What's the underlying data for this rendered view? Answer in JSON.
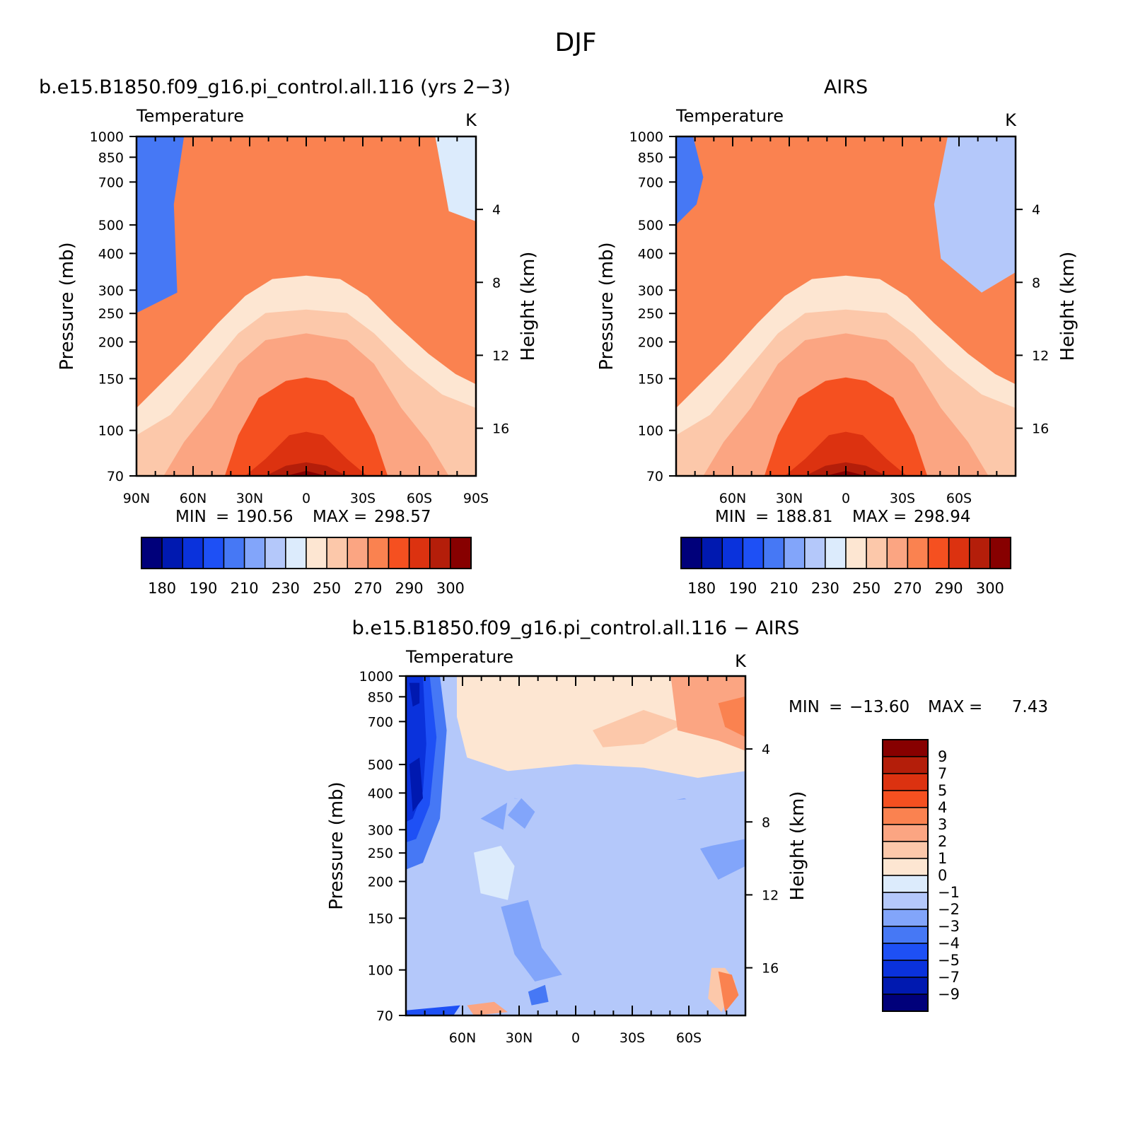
{
  "figure": {
    "season": "DJF"
  },
  "chart_data": [
    {
      "type": "heatmap",
      "panel": "model",
      "title": "b.e15.B1850.f09_g16.pi_control.all.116 (yrs 2−3)",
      "variable": "Temperature",
      "units": "K",
      "ylabel": "Pressure (mb)",
      "y2label": "Height (km)",
      "x_ticks": [
        "90N",
        "60N",
        "30N",
        "0",
        "30S",
        "60S",
        "90S"
      ],
      "x_range": [
        90,
        -90
      ],
      "y_ticks": [
        70,
        100,
        150,
        200,
        250,
        300,
        400,
        500,
        700,
        850,
        1000
      ],
      "y_range": [
        1000,
        70
      ],
      "y_scale": "log",
      "y2_ticks": [
        4,
        8,
        12,
        16
      ],
      "stats": {
        "min_label": "MIN",
        "min": "190.56",
        "max_label": "MAX",
        "max": "298.57"
      },
      "colorbar": {
        "levels": [
          180,
          185,
          190,
          200,
          210,
          220,
          230,
          240,
          250,
          260,
          270,
          280,
          290,
          295,
          300
        ],
        "labels": [
          "180",
          "190",
          "210",
          "230",
          "250",
          "270",
          "290",
          "300"
        ]
      }
    },
    {
      "type": "heatmap",
      "panel": "obs",
      "title": "AIRS",
      "variable": "Temperature",
      "units": "K",
      "ylabel": "Pressure (mb)",
      "y2label": "Height (km)",
      "x_ticks": [
        "60N",
        "30N",
        "0",
        "30S",
        "60S"
      ],
      "x_range": [
        90,
        -90
      ],
      "y_ticks": [
        70,
        100,
        150,
        200,
        250,
        300,
        400,
        500,
        700,
        850,
        1000
      ],
      "y_range": [
        1000,
        70
      ],
      "y_scale": "log",
      "y2_ticks": [
        4,
        8,
        12,
        16
      ],
      "stats": {
        "min_label": "MIN",
        "min": "188.81",
        "max_label": "MAX",
        "max": "298.94"
      },
      "colorbar": {
        "levels": [
          180,
          185,
          190,
          200,
          210,
          220,
          230,
          240,
          250,
          260,
          270,
          280,
          290,
          295,
          300
        ],
        "labels": [
          "180",
          "190",
          "210",
          "230",
          "250",
          "270",
          "290",
          "300"
        ]
      }
    },
    {
      "type": "heatmap",
      "panel": "diff",
      "title": "b.e15.B1850.f09_g16.pi_control.all.116 − AIRS",
      "variable": "Temperature",
      "units": "K",
      "ylabel": "Pressure (mb)",
      "y2label": "Height (km)",
      "x_ticks": [
        "60N",
        "30N",
        "0",
        "30S",
        "60S"
      ],
      "x_range": [
        90,
        -90
      ],
      "y_ticks": [
        70,
        100,
        150,
        200,
        250,
        300,
        400,
        500,
        700,
        850,
        1000
      ],
      "y_range": [
        1000,
        70
      ],
      "y_scale": "log",
      "y2_ticks": [
        4,
        8,
        12,
        16
      ],
      "stats": {
        "min_label": "MIN",
        "min": "−13.60",
        "max_label": "MAX",
        "max": "7.43"
      },
      "colorbar": {
        "labels": [
          "9",
          "7",
          "5",
          "4",
          "3",
          "2",
          "1",
          "0",
          "−1",
          "−2",
          "−3",
          "−4",
          "−5",
          "−7",
          "−9"
        ]
      }
    }
  ],
  "palettes": {
    "absolute": [
      "#00007a",
      "#0019b0",
      "#0a32dc",
      "#1e50f5",
      "#4678f5",
      "#82a5fa",
      "#b4c8fa",
      "#dcebfc",
      "#fde6d2",
      "#fcc8aa",
      "#fba582",
      "#fa8250",
      "#f55020",
      "#dc3210",
      "#b41e0a",
      "#870000"
    ],
    "diff": [
      "#00007a",
      "#0019b0",
      "#0a32dc",
      "#1e50f5",
      "#4678f5",
      "#82a5fa",
      "#b4c8fa",
      "#dcebfc",
      "#fde6d2",
      "#fcc8aa",
      "#fba582",
      "#fa8250",
      "#f55020",
      "#dc3210",
      "#b41e0a",
      "#870000"
    ]
  }
}
